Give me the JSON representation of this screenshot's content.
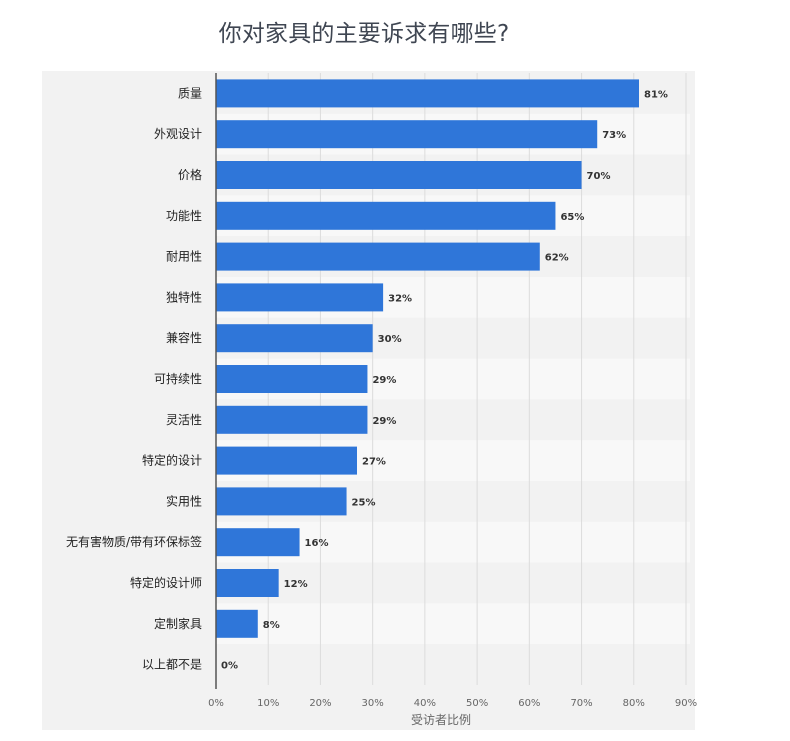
{
  "chart_data": {
    "type": "bar",
    "orientation": "horizontal",
    "title": "你对家具的主要诉求有哪些?",
    "xlabel": "受访者比例",
    "ylabel": "",
    "xlim": [
      0,
      90
    ],
    "x_ticks": [
      "0%",
      "10%",
      "20%",
      "30%",
      "40%",
      "50%",
      "60%",
      "70%",
      "80%",
      "90%"
    ],
    "grid": true,
    "bar_color": "#2f76d9",
    "categories": [
      "质量",
      "外观设计",
      "价格",
      "功能性",
      "耐用性",
      "独特性",
      "兼容性",
      "可持续性",
      "灵活性",
      "特定的设计",
      "实用性",
      "无有害物质/带有环保标签",
      "特定的设计师",
      "定制家具",
      "以上都不是"
    ],
    "values": [
      81,
      73,
      70,
      65,
      62,
      32,
      30,
      29,
      29,
      27,
      25,
      16,
      12,
      8,
      0
    ],
    "value_labels": [
      "81%",
      "73%",
      "70%",
      "65%",
      "62%",
      "32%",
      "30%",
      "29%",
      "29%",
      "27%",
      "25%",
      "16%",
      "12%",
      "8%",
      "0%"
    ]
  }
}
